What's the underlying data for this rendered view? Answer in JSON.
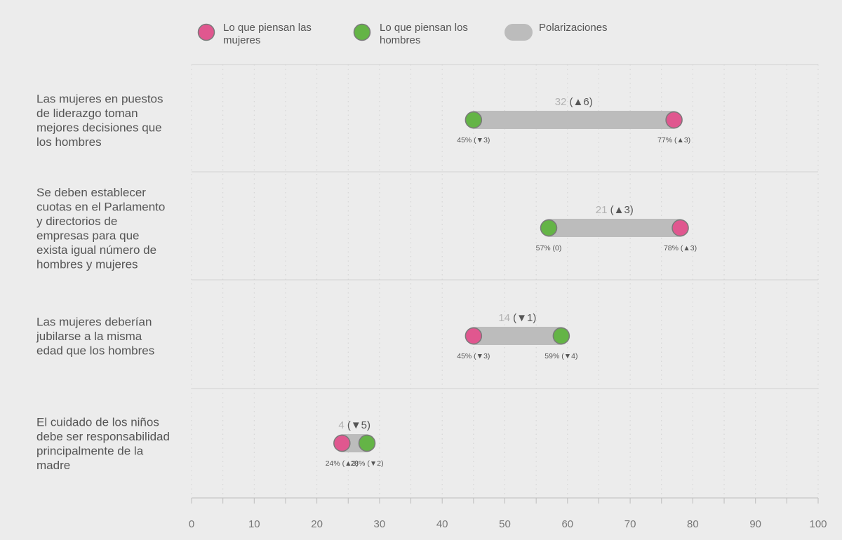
{
  "legend": {
    "women": "Lo que piensan las mujeres",
    "men": "Lo que piensan los hombres",
    "gap": "Polarizaciones"
  },
  "colors": {
    "women": "#e0578f",
    "men": "#64b446",
    "bar": "#bcbcbc",
    "marker_stroke": "#7a7a7a",
    "grid": "#d2d2d2"
  },
  "chart_data": {
    "type": "dumbbell",
    "xlim": [
      0,
      100
    ],
    "x_ticks": [
      0,
      10,
      20,
      30,
      40,
      50,
      60,
      70,
      80,
      90,
      100
    ],
    "grid": true,
    "legend_position": "top",
    "series": [
      {
        "name": "Lo que piensan las mujeres",
        "key": "women"
      },
      {
        "name": "Lo que piensan los hombres",
        "key": "men"
      },
      {
        "name": "Polarizaciones",
        "key": "gap"
      }
    ],
    "items": [
      {
        "question_lines": [
          "Las mujeres en puestos",
          "de liderazgo toman",
          "mejores decisiones que",
          "los hombres"
        ],
        "women": 77,
        "women_label": "77% (▲3)",
        "men": 45,
        "men_label": "45% (▼3)",
        "gap": 32,
        "gap_change": "(▲6)"
      },
      {
        "question_lines": [
          "Se deben establecer",
          "cuotas en el Parlamento",
          "y directorios de",
          "empresas para que",
          "exista igual número de",
          "hombres y mujeres"
        ],
        "women": 78,
        "women_label": "78% (▲3)",
        "men": 57,
        "men_label": "57% (0)",
        "gap": 21,
        "gap_change": "(▲3)"
      },
      {
        "question_lines": [
          "Las mujeres deberían",
          "jubilarse a la misma",
          "edad que los hombres"
        ],
        "women": 45,
        "women_label": "45% (▼3)",
        "men": 59,
        "men_label": "59% (▼4)",
        "gap": 14,
        "gap_change": "(▼1)"
      },
      {
        "question_lines": [
          "El cuidado de los niños",
          "debe ser responsabilidad",
          "principalmente de la",
          "madre"
        ],
        "women": 24,
        "women_label": "24% (▲3)",
        "men": 28,
        "men_label": "28% (▼2)",
        "gap": 4,
        "gap_change": "(▼5)"
      }
    ]
  }
}
